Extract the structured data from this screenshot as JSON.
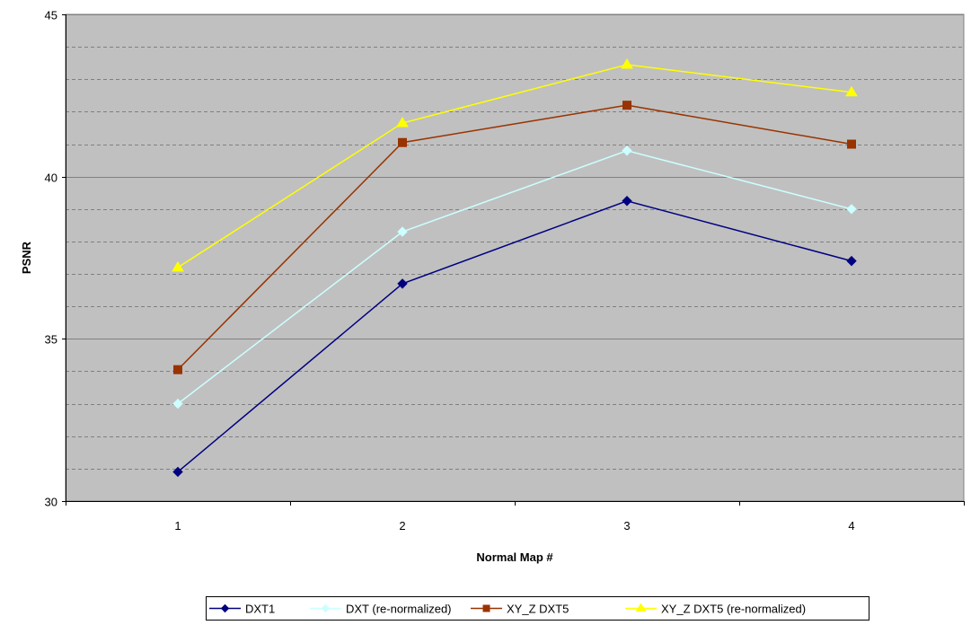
{
  "chart_data": {
    "type": "line",
    "title": "",
    "xlabel": "Normal Map #",
    "ylabel": "PSNR",
    "categories": [
      "1",
      "2",
      "3",
      "4"
    ],
    "ylim": [
      30,
      45
    ],
    "y_major_ticks": [
      30,
      35,
      40,
      45
    ],
    "y_minor_step": 1,
    "grid": true,
    "legend_position": "bottom",
    "plot_background": "#c0c0c0",
    "series": [
      {
        "name": "DXT1",
        "values": [
          30.9,
          36.7,
          39.25,
          37.4
        ],
        "color": "#000080",
        "marker": "diamond"
      },
      {
        "name": "DXT (re-normalized)",
        "values": [
          33.0,
          38.3,
          40.8,
          39.0
        ],
        "color": "#ccffff",
        "marker": "diamond"
      },
      {
        "name": "XY_Z DXT5",
        "values": [
          34.05,
          41.05,
          42.2,
          41.0
        ],
        "color": "#993300",
        "marker": "square"
      },
      {
        "name": "XY_Z DXT5 (re-normalized)",
        "values": [
          37.2,
          41.65,
          43.45,
          42.6
        ],
        "color": "#ffff00",
        "marker": "triangle"
      }
    ]
  }
}
